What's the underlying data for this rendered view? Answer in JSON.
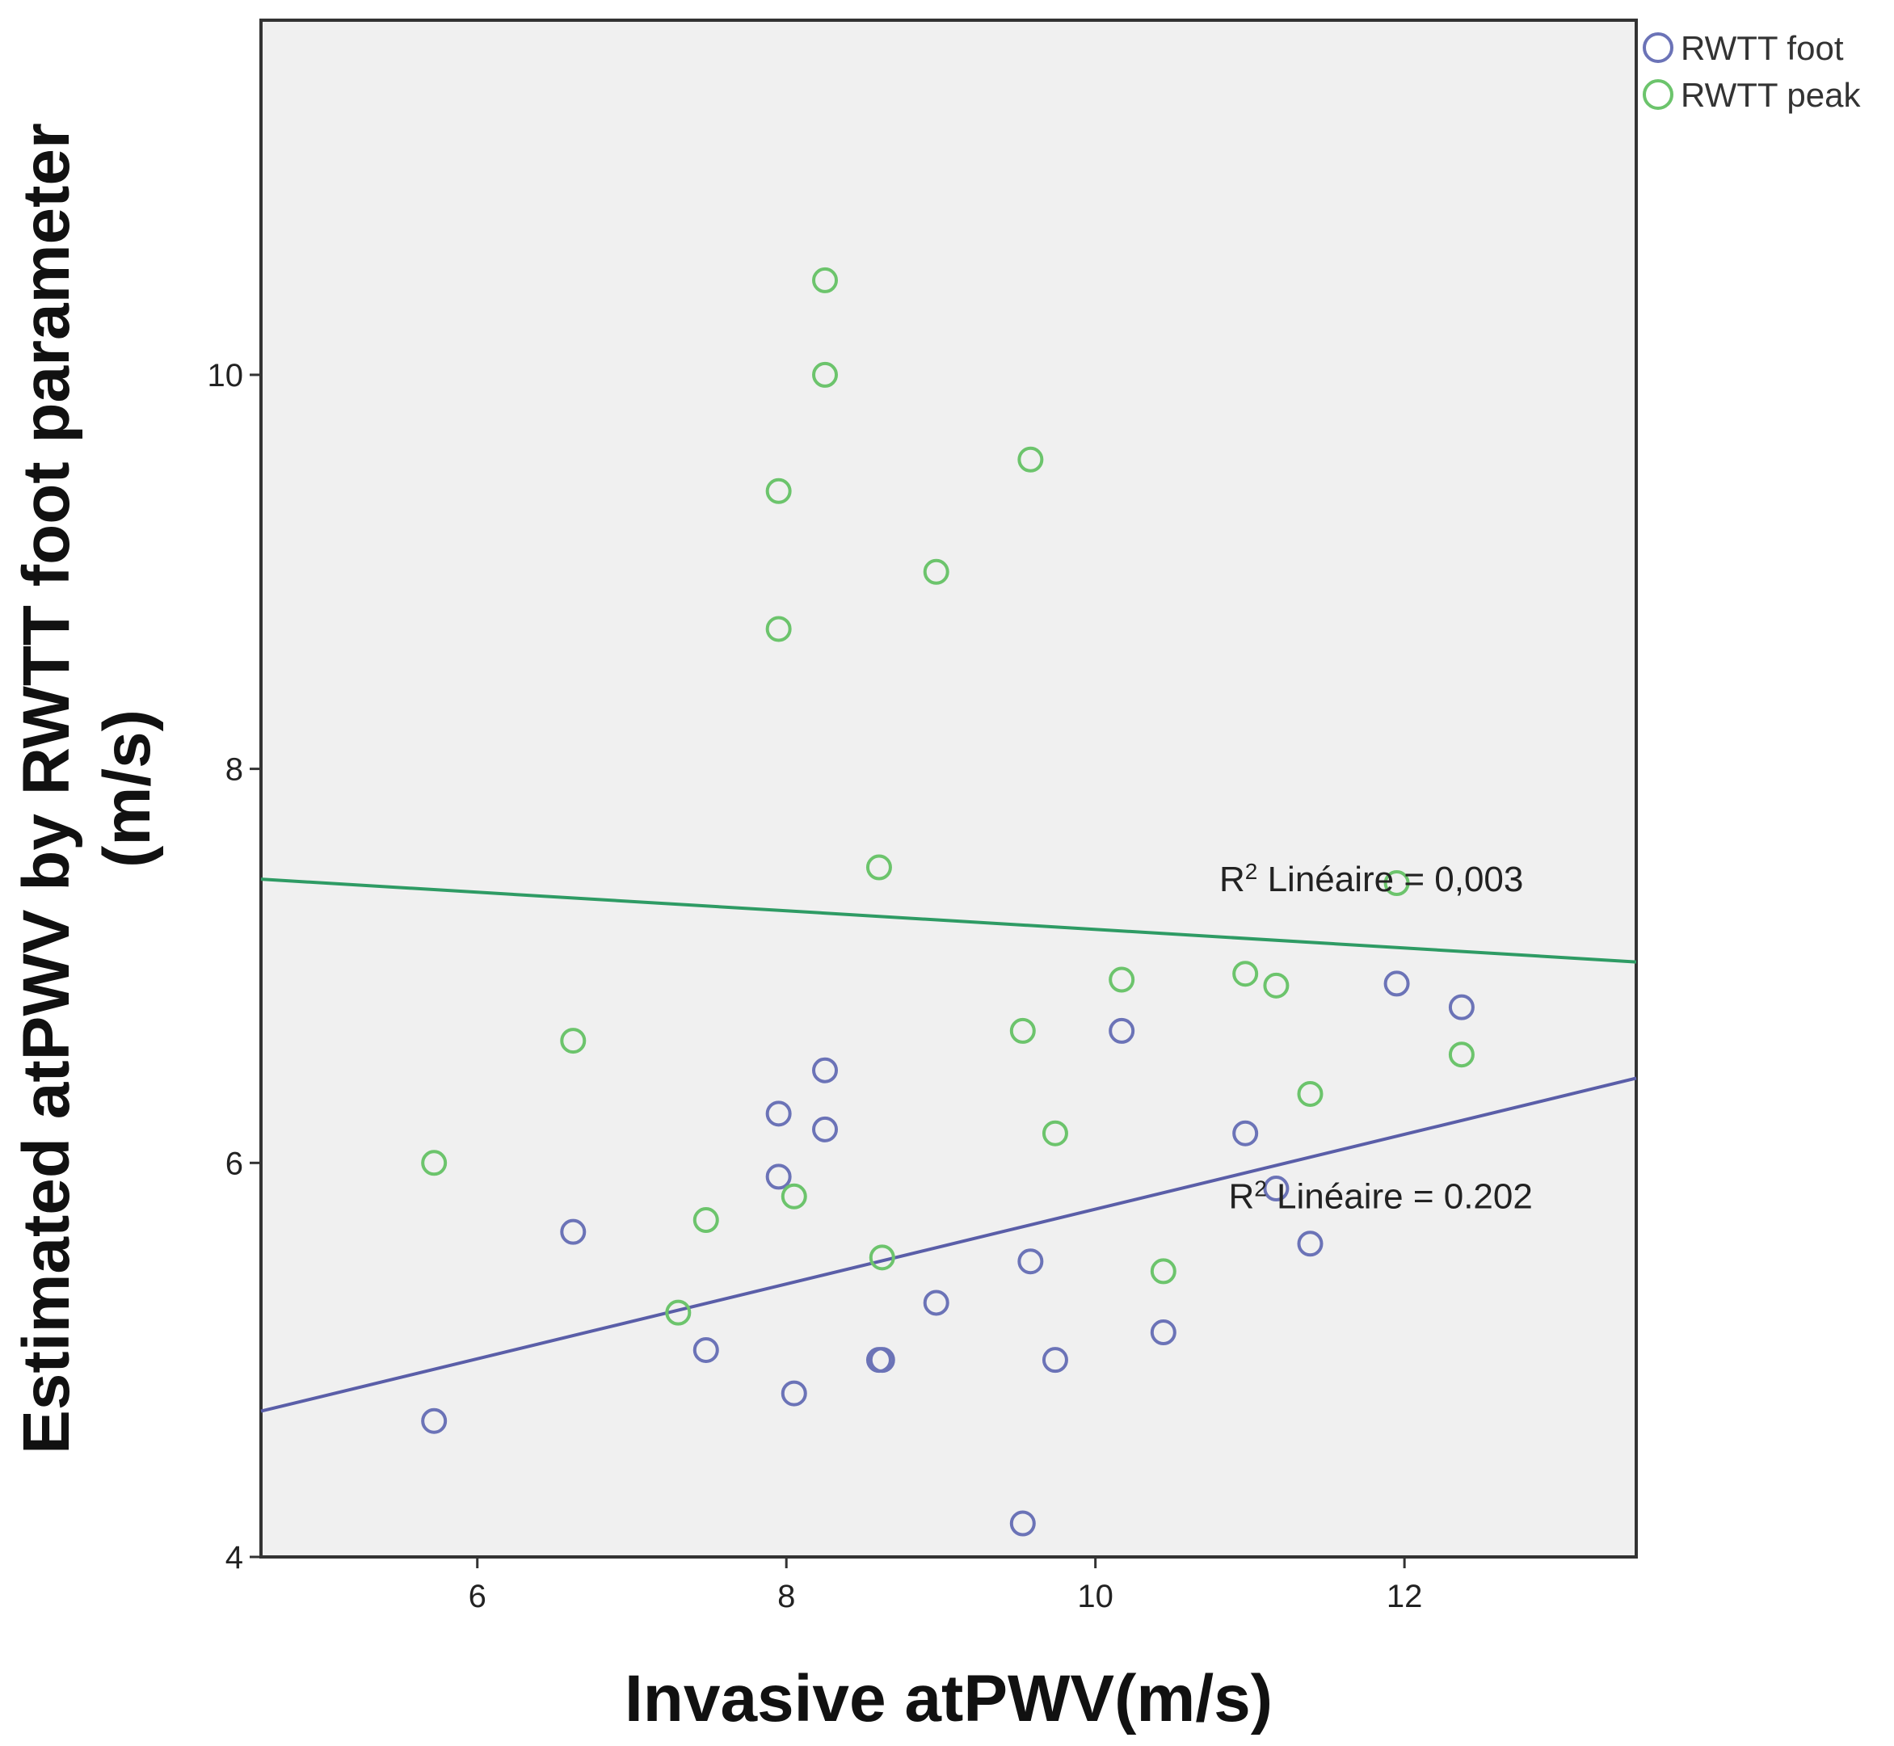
{
  "chart_data": {
    "type": "scatter",
    "title": "",
    "xlabel": "Invasive atPWV(m/s)",
    "ylabel_line1": "Estimated atPWV by RWTT foot parameter",
    "ylabel_line2": "(m/s)",
    "xlim": [
      4.6,
      13.5
    ],
    "ylim": [
      4,
      11.8
    ],
    "xticks": [
      6,
      8,
      10,
      12
    ],
    "yticks": [
      4,
      6,
      8,
      10
    ],
    "grid": false,
    "legend_position": "top-right",
    "series": [
      {
        "name": "RWTT foot",
        "color": "#6b73b7",
        "points": [
          {
            "x": 5.72,
            "y": 4.69
          },
          {
            "x": 6.62,
            "y": 5.65
          },
          {
            "x": 7.48,
            "y": 5.05
          },
          {
            "x": 7.95,
            "y": 6.25
          },
          {
            "x": 7.95,
            "y": 5.93
          },
          {
            "x": 8.05,
            "y": 4.83
          },
          {
            "x": 8.25,
            "y": 6.47
          },
          {
            "x": 8.25,
            "y": 6.17
          },
          {
            "x": 8.6,
            "y": 5.0
          },
          {
            "x": 8.62,
            "y": 5.0
          },
          {
            "x": 8.97,
            "y": 5.29
          },
          {
            "x": 9.53,
            "y": 4.17
          },
          {
            "x": 9.58,
            "y": 5.5
          },
          {
            "x": 9.74,
            "y": 5.0
          },
          {
            "x": 10.17,
            "y": 6.67
          },
          {
            "x": 10.44,
            "y": 5.14
          },
          {
            "x": 10.97,
            "y": 6.15
          },
          {
            "x": 11.17,
            "y": 5.87
          },
          {
            "x": 11.39,
            "y": 5.59
          },
          {
            "x": 11.95,
            "y": 6.91
          },
          {
            "x": 12.37,
            "y": 6.79
          }
        ]
      },
      {
        "name": "RWTT peak",
        "color": "#6cc46c",
        "points": [
          {
            "x": 5.72,
            "y": 6.0
          },
          {
            "x": 6.62,
            "y": 6.62
          },
          {
            "x": 7.3,
            "y": 5.24
          },
          {
            "x": 7.48,
            "y": 5.71
          },
          {
            "x": 7.95,
            "y": 9.41
          },
          {
            "x": 7.95,
            "y": 8.71
          },
          {
            "x": 8.05,
            "y": 5.83
          },
          {
            "x": 8.25,
            "y": 10.48
          },
          {
            "x": 8.25,
            "y": 10.0
          },
          {
            "x": 8.6,
            "y": 7.5
          },
          {
            "x": 8.62,
            "y": 5.52
          },
          {
            "x": 8.97,
            "y": 9.0
          },
          {
            "x": 9.53,
            "y": 6.67
          },
          {
            "x": 9.58,
            "y": 9.57
          },
          {
            "x": 9.74,
            "y": 6.15
          },
          {
            "x": 10.17,
            "y": 6.93
          },
          {
            "x": 10.44,
            "y": 5.45
          },
          {
            "x": 10.97,
            "y": 6.96
          },
          {
            "x": 11.17,
            "y": 6.9
          },
          {
            "x": 11.39,
            "y": 6.35
          },
          {
            "x": 11.95,
            "y": 7.42
          },
          {
            "x": 12.37,
            "y": 6.55
          }
        ]
      }
    ],
    "fit_lines": [
      {
        "series": "RWTT peak",
        "color": "#2e9b64",
        "x": [
          4.6,
          13.5
        ],
        "y": [
          7.44,
          7.02
        ],
        "label_base": "R",
        "label_sup": "2",
        "label_text": " Linéaire = 0,003",
        "label_anchor": {
          "x": 12.77,
          "y": 7.38
        }
      },
      {
        "series": "RWTT foot",
        "color": "#5a5ea8",
        "x": [
          4.6,
          13.5
        ],
        "y": [
          4.74,
          6.43
        ],
        "label_base": "R",
        "label_sup": "2",
        "label_text": " Linéaire = 0.202",
        "label_anchor": {
          "x": 12.83,
          "y": 5.77
        }
      }
    ]
  }
}
